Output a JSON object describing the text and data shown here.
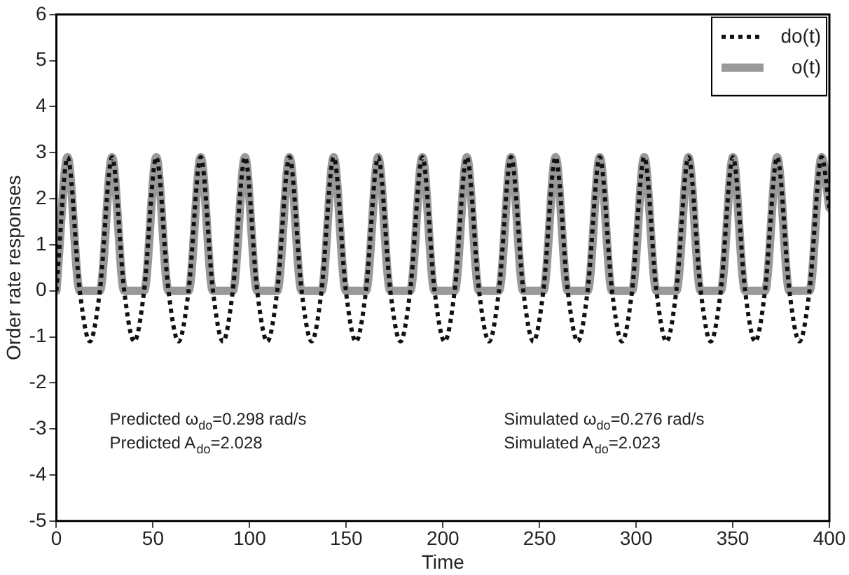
{
  "chart_data": {
    "type": "line",
    "xlabel": "Time",
    "ylabel": "Order rate responses",
    "xlim": [
      0,
      400
    ],
    "xticks": [
      0,
      50,
      100,
      150,
      200,
      250,
      300,
      350,
      400
    ],
    "ylim": [
      -5,
      6
    ],
    "yticks": [
      -5,
      -4,
      -3,
      -2,
      -1,
      0,
      1,
      2,
      3,
      4,
      5,
      6
    ],
    "grid": false,
    "legend": "top right",
    "marker": "none",
    "series": [
      {
        "name": "do(t)",
        "color": "#111111",
        "line_style": "dotted",
        "x": [
          0,
          5.8,
          12.1,
          17.3,
          22.5,
          28.8,
          35.1,
          40.3,
          45.4,
          51.7,
          58.0,
          63.2,
          68.4,
          74.7,
          81.0,
          86.2,
          91.3,
          97.6,
          103.9,
          109.1,
          114.3,
          120.6,
          126.9,
          132.1,
          137.2,
          143.5,
          149.8,
          155.0,
          160.2,
          166.5,
          172.8,
          178.0,
          183.1,
          189.4,
          195.7,
          200.9,
          206.1,
          212.4,
          218.7,
          223.9,
          229.0,
          235.3,
          241.6,
          246.8,
          252.0,
          258.3,
          264.6,
          269.8,
          274.9,
          281.2,
          287.5,
          292.7,
          297.9,
          304.2,
          310.5,
          315.7,
          320.8,
          327.1,
          333.4,
          338.6,
          343.8,
          350.1,
          356.4,
          361.6,
          366.7,
          373.0,
          379.3,
          384.5,
          389.7,
          396.0,
          400
        ],
        "values": [
          0,
          2.9,
          0,
          -1.1,
          0,
          2.9,
          0,
          -1.1,
          0,
          2.9,
          0,
          -1.1,
          0,
          2.9,
          0,
          -1.1,
          0,
          2.9,
          0,
          -1.1,
          0,
          2.9,
          0,
          -1.1,
          0,
          2.9,
          0,
          -1.1,
          0,
          2.9,
          0,
          -1.1,
          0,
          2.9,
          0,
          -1.1,
          0,
          2.9,
          0,
          -1.1,
          0,
          2.9,
          0,
          -1.1,
          0,
          2.9,
          0,
          -1.1,
          0,
          2.9,
          0,
          -1.1,
          0,
          2.9,
          0,
          -1.1,
          0,
          2.9,
          0,
          -1.1,
          0,
          2.9,
          0,
          -1.1,
          0,
          2.9,
          0,
          -1.1,
          0,
          2.9,
          1.8
        ]
      },
      {
        "name": "o(t)",
        "color": "#999999",
        "line_style": "solid",
        "x": [
          0,
          5.8,
          12.1,
          22.5,
          28.8,
          35.1,
          45.4,
          51.7,
          58.0,
          68.4,
          74.7,
          81.0,
          91.3,
          97.6,
          103.9,
          114.3,
          120.6,
          126.9,
          137.2,
          143.5,
          149.8,
          160.2,
          166.5,
          172.8,
          183.1,
          189.4,
          195.7,
          206.1,
          212.4,
          218.7,
          229.0,
          235.3,
          241.6,
          252.0,
          258.3,
          264.6,
          274.9,
          281.2,
          287.5,
          297.9,
          304.2,
          310.5,
          320.8,
          327.1,
          333.4,
          343.8,
          350.1,
          356.4,
          366.7,
          373.0,
          379.3,
          389.7,
          396.0,
          400
        ],
        "values": [
          0,
          2.9,
          0,
          0,
          2.9,
          0,
          0,
          2.9,
          0,
          0,
          2.9,
          0,
          0,
          2.9,
          0,
          0,
          2.9,
          0,
          0,
          2.9,
          0,
          0,
          2.9,
          0,
          0,
          2.9,
          0,
          0,
          2.9,
          0,
          0,
          2.9,
          0,
          0,
          2.9,
          0,
          0,
          2.9,
          0,
          0,
          2.9,
          0,
          0,
          2.9,
          0,
          0,
          2.9,
          0,
          0,
          2.9,
          0,
          0,
          2.9,
          1.8
        ]
      }
    ],
    "annotations": [
      "Predicted ω$_{do}$=0.298 rad/s",
      "Predicted A$_{do}$=2.028",
      "Simulated ω$_{do}$=0.276 rad/s",
      "Simulated A$_{do}$=2.023"
    ]
  }
}
